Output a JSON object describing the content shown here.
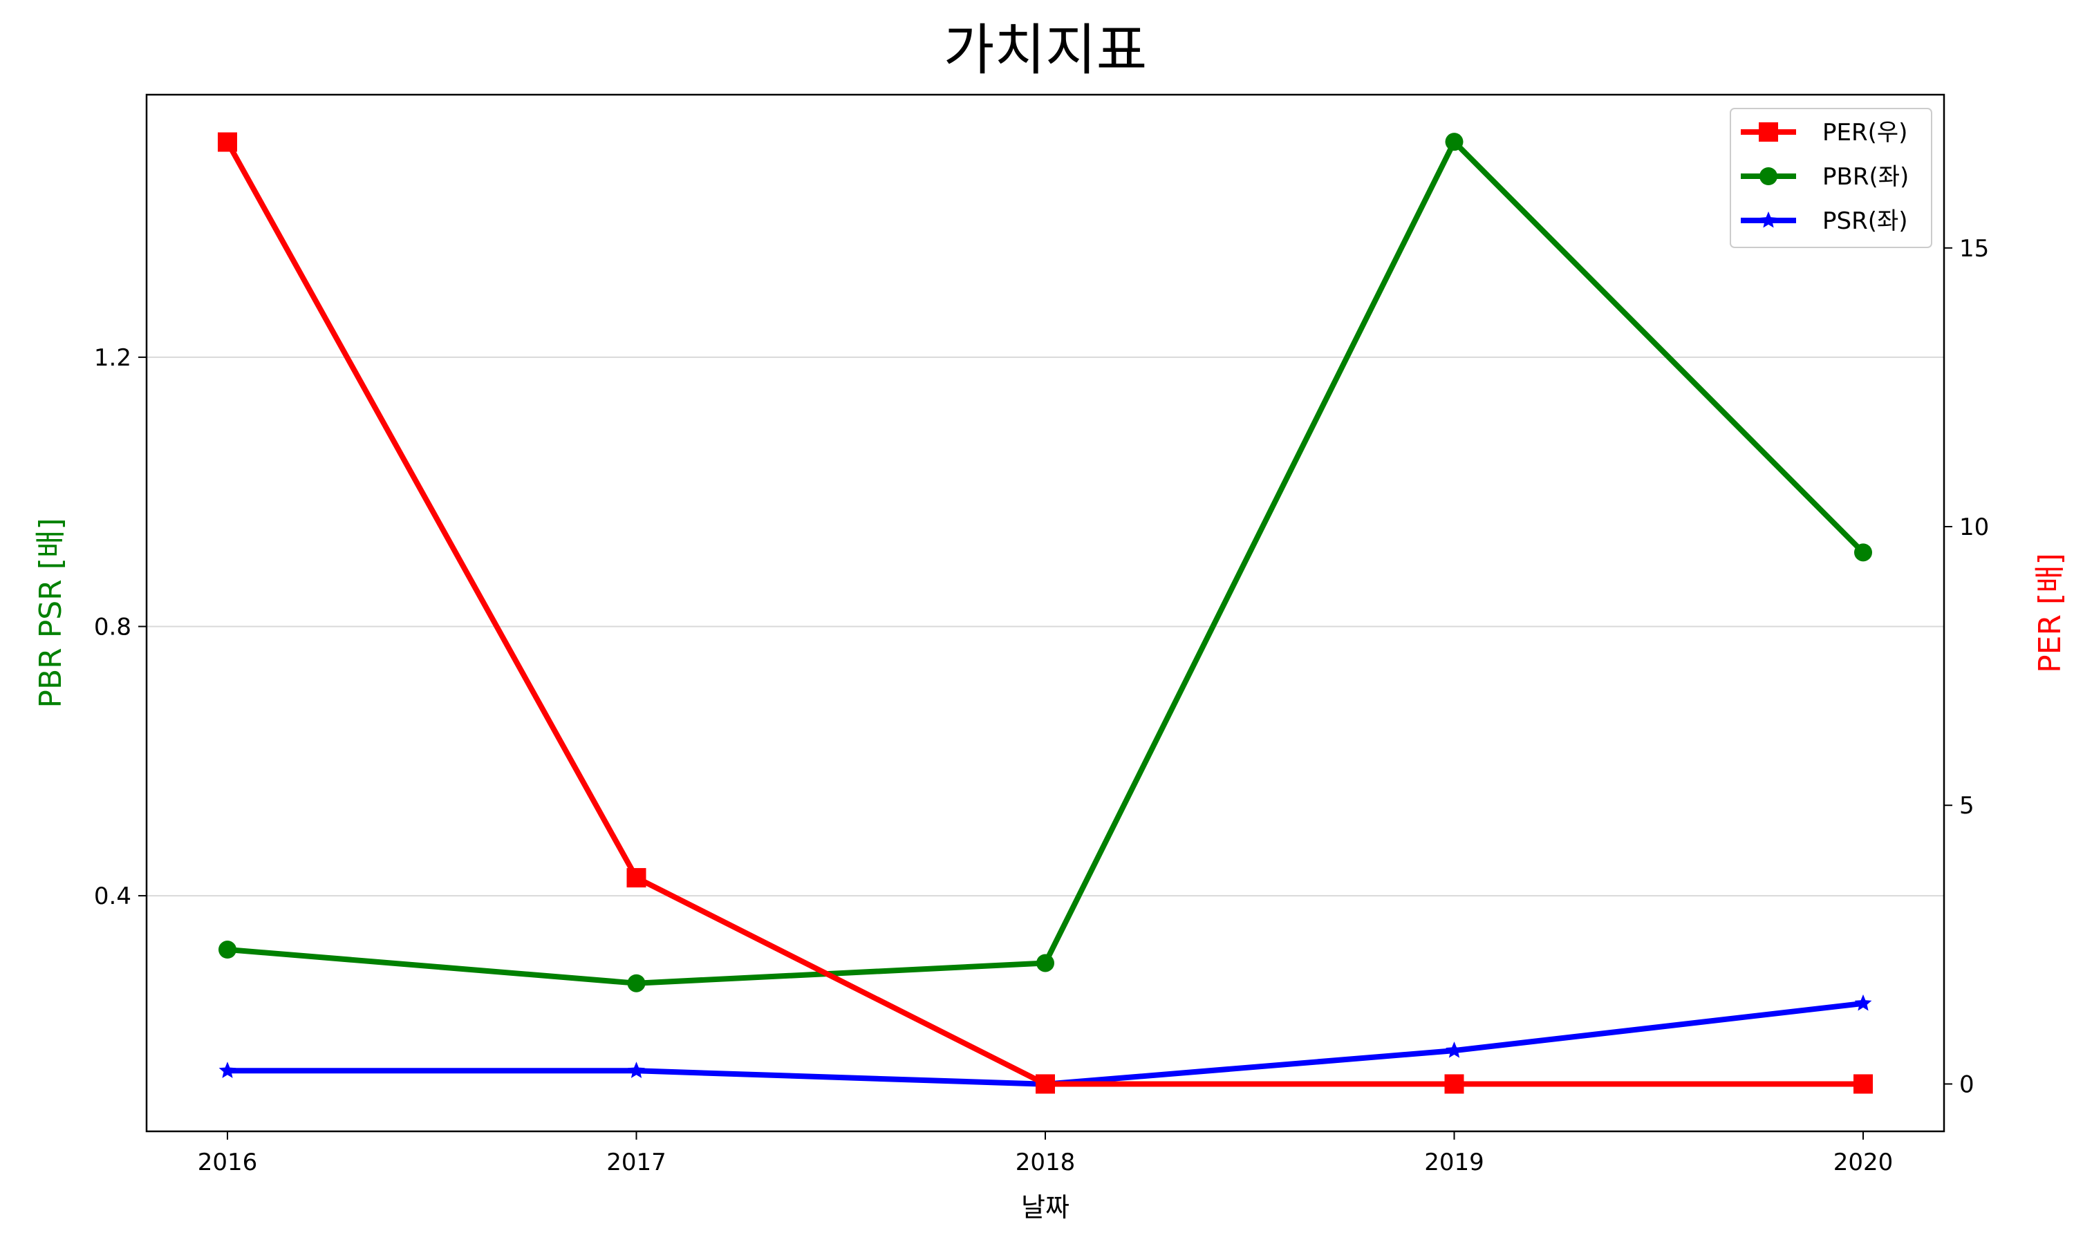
{
  "chart_data": {
    "type": "line",
    "title": "가치지표",
    "xlabel": "날짜",
    "ylabel_left": "PBR PSR [배]",
    "ylabel_right": "PER [배]",
    "ylabel_left_color": "#008000",
    "ylabel_right_color": "#ff0000",
    "categories": [
      "2016",
      "2017",
      "2018",
      "2019",
      "2020"
    ],
    "y_left": {
      "lim": [
        0.05,
        1.59
      ],
      "ticks": [
        0.4,
        0.8,
        1.2
      ],
      "tick_labels": [
        "0.4",
        "0.8",
        "1.2"
      ],
      "grid": true
    },
    "y_right": {
      "lim": [
        -0.85,
        17.75
      ],
      "ticks": [
        0,
        5,
        10,
        15
      ],
      "tick_labels": [
        "0",
        "5",
        "10",
        "15"
      ]
    },
    "series": [
      {
        "name": "PER(우)",
        "axis": "right",
        "color": "#ff0000",
        "marker": "square",
        "values": [
          16.9,
          3.7,
          0.0,
          0.0,
          0.0
        ]
      },
      {
        "name": "PBR(좌)",
        "axis": "left",
        "color": "#008000",
        "marker": "circle",
        "values": [
          0.32,
          0.27,
          0.3,
          1.52,
          0.91
        ]
      },
      {
        "name": "PSR(좌)",
        "axis": "left",
        "color": "#0000ff",
        "marker": "star",
        "values": [
          0.14,
          0.14,
          0.12,
          0.17,
          0.24
        ]
      }
    ],
    "legend_position": "top-right"
  }
}
